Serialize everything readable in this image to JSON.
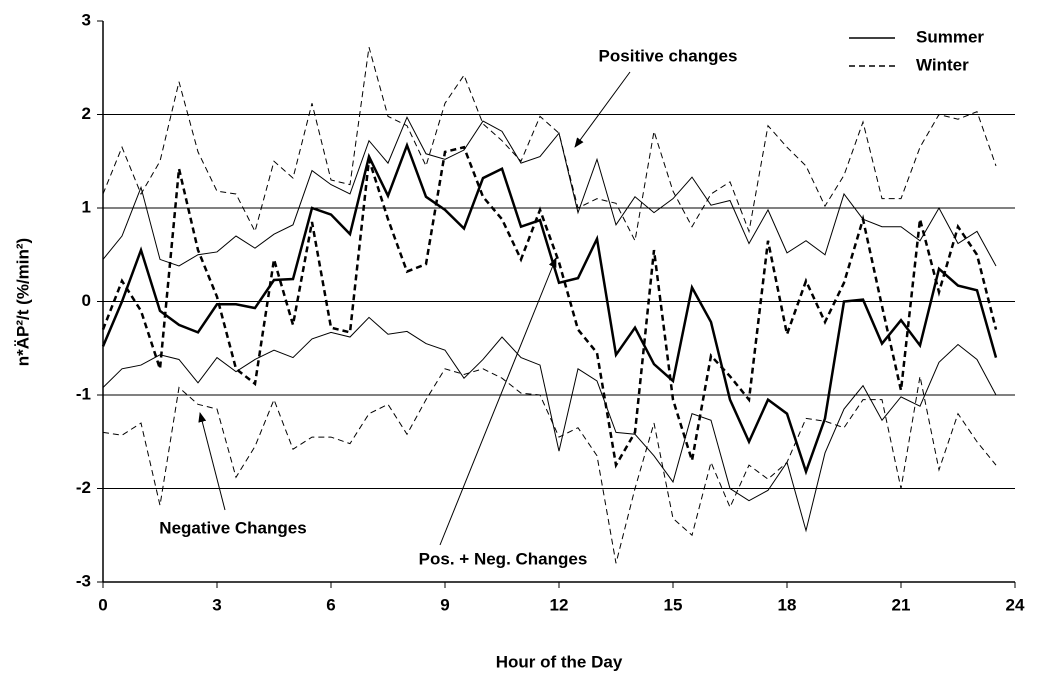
{
  "chart_data": {
    "type": "line",
    "x_label": "Hour of the Day",
    "y_label": "n*ÄP²/t (%/min²)",
    "xlim": [
      0,
      24
    ],
    "xticks": [
      0,
      3,
      6,
      9,
      12,
      15,
      18,
      21,
      24
    ],
    "ylim": [
      -3,
      3
    ],
    "yticks": [
      -3,
      -2,
      -1,
      0,
      1,
      2,
      3
    ],
    "grid": true,
    "legend": "top-right",
    "annotations": [
      "Positive changes",
      "Negative Changes",
      "Pos. + Neg. Changes"
    ],
    "x": [
      0,
      0.5,
      1,
      1.5,
      2,
      2.5,
      3,
      3.5,
      4,
      4.5,
      5,
      5.5,
      6,
      6.5,
      7,
      7.5,
      8,
      8.5,
      9,
      9.5,
      10,
      10.5,
      11,
      11.5,
      12,
      12.5,
      13,
      13.5,
      14,
      14.5,
      15,
      15.5,
      16,
      16.5,
      17,
      17.5,
      18,
      18.5,
      19,
      19.5,
      20,
      20.5,
      21,
      21.5,
      22,
      22.5,
      23,
      23.5
    ],
    "series": [
      {
        "name": "Summer",
        "color": "#000000",
        "dash": "solid",
        "width": 1,
        "values": [
          0.45,
          0.7,
          1.22,
          0.45,
          0.38,
          0.5,
          0.53,
          0.7,
          0.57,
          0.72,
          0.82,
          1.4,
          1.25,
          1.15,
          1.72,
          1.48,
          1.97,
          1.58,
          1.52,
          1.62,
          1.93,
          1.82,
          1.48,
          1.55,
          1.8,
          0.95,
          1.52,
          0.82,
          1.12,
          0.95,
          1.1,
          1.33,
          1.03,
          1.08,
          0.62,
          0.98,
          0.52,
          0.65,
          0.5,
          1.15,
          0.88,
          0.8,
          0.8,
          0.65,
          1.0,
          0.62,
          0.75,
          0.38
        ]
      },
      {
        "name": "Summer",
        "color": "#000000",
        "dash": "solid",
        "width": 2.5,
        "values": [
          -0.48,
          0.0,
          0.55,
          -0.1,
          -0.25,
          -0.33,
          -0.03,
          -0.03,
          -0.07,
          0.23,
          0.24,
          1.0,
          0.93,
          0.72,
          1.55,
          1.13,
          1.67,
          1.12,
          0.98,
          0.78,
          1.32,
          1.42,
          0.8,
          0.87,
          0.2,
          0.25,
          0.67,
          -0.57,
          -0.28,
          -0.67,
          -0.85,
          0.15,
          -0.22,
          -1.05,
          -1.5,
          -1.05,
          -1.2,
          -1.82,
          -1.25,
          0.0,
          0.02,
          -0.45,
          -0.2,
          -0.47,
          0.35,
          0.17,
          0.12,
          -0.6
        ]
      },
      {
        "name": "Summer",
        "color": "#000000",
        "dash": "solid",
        "width": 1,
        "values": [
          -0.92,
          -0.72,
          -0.68,
          -0.57,
          -0.62,
          -0.87,
          -0.6,
          -0.75,
          -0.62,
          -0.52,
          -0.6,
          -0.4,
          -0.33,
          -0.38,
          -0.17,
          -0.35,
          -0.32,
          -0.45,
          -0.52,
          -0.82,
          -0.62,
          -0.38,
          -0.6,
          -0.68,
          -1.6,
          -0.72,
          -0.85,
          -1.4,
          -1.42,
          -1.65,
          -1.93,
          -1.2,
          -1.27,
          -2.0,
          -2.13,
          -2.02,
          -1.72,
          -2.45,
          -1.62,
          -1.15,
          -0.9,
          -1.27,
          -1.02,
          -1.12,
          -0.65,
          -0.46,
          -0.62,
          -1.0
        ]
      },
      {
        "name": "Winter",
        "color": "#000000",
        "dash": "dashed",
        "width": 1,
        "values": [
          1.15,
          1.65,
          1.15,
          1.5,
          2.35,
          1.6,
          1.18,
          1.15,
          0.75,
          1.5,
          1.32,
          2.12,
          1.3,
          1.25,
          2.72,
          1.98,
          1.88,
          1.45,
          2.12,
          2.42,
          1.9,
          1.72,
          1.5,
          1.98,
          1.8,
          1.0,
          1.1,
          1.05,
          0.65,
          1.82,
          1.18,
          0.8,
          1.15,
          1.28,
          0.75,
          1.88,
          1.65,
          1.45,
          1.02,
          1.35,
          1.92,
          1.1,
          1.1,
          1.65,
          2.0,
          1.95,
          2.03,
          1.45
        ]
      },
      {
        "name": "Winter",
        "color": "#000000",
        "dash": "dashed",
        "width": 2.5,
        "values": [
          -0.3,
          0.22,
          -0.1,
          -0.72,
          1.42,
          0.55,
          0.05,
          -0.72,
          -0.88,
          0.45,
          -0.25,
          0.85,
          -0.28,
          -0.33,
          1.52,
          0.88,
          0.32,
          0.4,
          1.6,
          1.65,
          1.12,
          0.88,
          0.45,
          0.98,
          0.42,
          -0.3,
          -0.55,
          -1.75,
          -1.4,
          0.55,
          -1.05,
          -1.7,
          -0.58,
          -0.8,
          -1.05,
          0.65,
          -0.35,
          0.22,
          -0.22,
          0.2,
          0.88,
          -0.05,
          -0.95,
          0.88,
          0.1,
          0.8,
          0.5,
          -0.3
        ]
      },
      {
        "name": "Winter",
        "color": "#000000",
        "dash": "dashed",
        "width": 1,
        "values": [
          -1.4,
          -1.43,
          -1.3,
          -2.18,
          -0.92,
          -1.1,
          -1.15,
          -1.88,
          -1.55,
          -1.05,
          -1.58,
          -1.45,
          -1.45,
          -1.52,
          -1.2,
          -1.1,
          -1.42,
          -1.05,
          -0.72,
          -0.78,
          -0.72,
          -0.82,
          -0.98,
          -1.0,
          -1.45,
          -1.35,
          -1.65,
          -2.8,
          -2.0,
          -1.3,
          -2.32,
          -2.5,
          -1.72,
          -2.2,
          -1.75,
          -1.9,
          -1.72,
          -1.25,
          -1.28,
          -1.35,
          -1.05,
          -1.05,
          -2.0,
          -0.8,
          -1.8,
          -1.2,
          -1.5,
          -1.75
        ]
      }
    ]
  }
}
